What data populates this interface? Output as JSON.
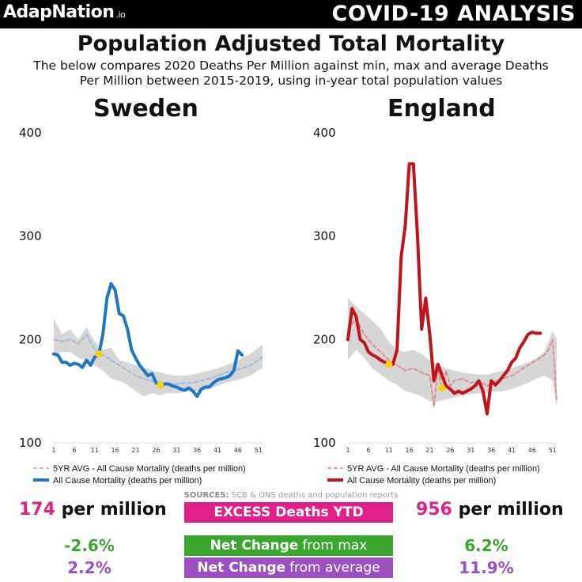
{
  "header": {
    "brand": "AdapNation",
    "brand_suffix": ".io",
    "topic": "COVID-19 ANALYSIS"
  },
  "title": "Population Adjusted Total Mortality",
  "subtitle": "The below compares 2020 Deaths Per Million against min, max and average Deaths Per Million between 2015-2019, using in-year total population values",
  "charts": {
    "left_title": "Sweden",
    "right_title": "England"
  },
  "chart_data": [
    {
      "type": "line",
      "title": "Sweden",
      "x_ticks": [
        1,
        6,
        11,
        16,
        21,
        26,
        31,
        36,
        41,
        46,
        51
      ],
      "y_ticks": [
        100,
        200,
        300,
        400
      ],
      "ylim": [
        100,
        400
      ],
      "xlim": [
        1,
        52
      ],
      "legend": [
        "5YR AVG - All Cause Mortality (deaths per million)",
        "All Cause Mortality (deaths per million)"
      ],
      "series": [
        {
          "name": "All Cause Mortality (deaths per million)",
          "color": "#1f77c4",
          "x": [
            1,
            2,
            3,
            4,
            5,
            6,
            7,
            8,
            9,
            10,
            11,
            12,
            13,
            14,
            15,
            16,
            17,
            18,
            19,
            20,
            21,
            22,
            23,
            24,
            25,
            26,
            27,
            28,
            29,
            30,
            31,
            32,
            33,
            34,
            35,
            36,
            37,
            38,
            39,
            40,
            41,
            42,
            43,
            44,
            45,
            46,
            47
          ],
          "values": [
            186,
            185,
            178,
            178,
            175,
            177,
            176,
            173,
            180,
            175,
            183,
            185,
            205,
            240,
            254,
            248,
            225,
            223,
            210,
            190,
            182,
            175,
            170,
            165,
            167,
            158,
            155,
            157,
            157,
            155,
            154,
            152,
            151,
            153,
            150,
            145,
            152,
            154,
            154,
            158,
            161,
            162,
            163,
            165,
            170,
            189,
            185
          ]
        },
        {
          "name": "5YR AVG - All Cause Mortality (deaths per million)",
          "color": "#8fb6dd",
          "dashed": true,
          "x": [
            1,
            3,
            5,
            7,
            9,
            11,
            13,
            15,
            17,
            19,
            21,
            23,
            25,
            27,
            29,
            31,
            33,
            35,
            37,
            39,
            41,
            43,
            45,
            47,
            49,
            51,
            52
          ],
          "values": [
            200,
            198,
            200,
            196,
            205,
            190,
            185,
            180,
            175,
            170,
            165,
            162,
            160,
            158,
            157,
            157,
            158,
            158,
            160,
            162,
            165,
            168,
            170,
            172,
            175,
            180,
            183
          ]
        }
      ],
      "band": {
        "name": "5YR min/max range",
        "x": [
          1,
          3,
          5,
          7,
          9,
          11,
          13,
          15,
          17,
          19,
          21,
          23,
          25,
          27,
          29,
          31,
          33,
          35,
          37,
          39,
          41,
          43,
          45,
          47,
          49,
          51,
          52
        ],
        "max": [
          220,
          205,
          210,
          200,
          212,
          198,
          190,
          192,
          180,
          178,
          175,
          173,
          170,
          168,
          166,
          165,
          165,
          166,
          168,
          170,
          172,
          175,
          178,
          182,
          186,
          192,
          195
        ],
        "min": [
          185,
          188,
          188,
          182,
          180,
          175,
          170,
          162,
          160,
          156,
          150,
          145,
          148,
          146,
          148,
          148,
          149,
          150,
          150,
          152,
          155,
          158,
          160,
          162,
          165,
          170,
          172
        ]
      },
      "markers": [
        {
          "x": 12,
          "y": 186
        },
        {
          "x": 27,
          "y": 156
        }
      ]
    },
    {
      "type": "line",
      "title": "England",
      "x_ticks": [
        1,
        6,
        11,
        16,
        21,
        26,
        31,
        36,
        41,
        46,
        51
      ],
      "y_ticks": [
        100,
        200,
        300,
        400
      ],
      "ylim": [
        100,
        400
      ],
      "xlim": [
        1,
        52
      ],
      "legend": [
        "5YR AVG - All Cause Mortality (deaths per million)",
        "All Cause Mortality (deaths per million)"
      ],
      "series": [
        {
          "name": "All Cause Mortality (deaths per million)",
          "color": "#c0131c",
          "x": [
            1,
            2,
            3,
            4,
            5,
            6,
            7,
            8,
            9,
            10,
            11,
            12,
            13,
            14,
            15,
            16,
            17,
            18,
            19,
            20,
            21,
            22,
            23,
            24,
            25,
            26,
            27,
            28,
            29,
            30,
            31,
            32,
            33,
            34,
            35,
            36,
            37,
            38,
            39,
            40,
            41,
            42,
            43,
            44,
            45,
            46,
            47,
            48
          ],
          "values": [
            200,
            230,
            222,
            200,
            197,
            188,
            185,
            183,
            180,
            178,
            176,
            176,
            190,
            280,
            310,
            370,
            370,
            300,
            210,
            240,
            205,
            160,
            176,
            165,
            155,
            152,
            148,
            150,
            148,
            150,
            152,
            155,
            160,
            150,
            128,
            160,
            156,
            160,
            165,
            170,
            178,
            182,
            192,
            198,
            205,
            207,
            206,
            206
          ]
        },
        {
          "name": "5YR AVG - All Cause Mortality (deaths per million)",
          "color": "#e08080",
          "dashed": true,
          "x": [
            1,
            3,
            5,
            7,
            9,
            11,
            13,
            15,
            17,
            19,
            21,
            22,
            23,
            24,
            25,
            26,
            27,
            29,
            31,
            33,
            35,
            37,
            39,
            41,
            43,
            45,
            47,
            49,
            50,
            51,
            52
          ],
          "values": [
            210,
            220,
            205,
            195,
            188,
            180,
            175,
            170,
            172,
            168,
            165,
            135,
            172,
            150,
            170,
            155,
            160,
            162,
            158,
            160,
            155,
            160,
            162,
            165,
            170,
            175,
            180,
            185,
            190,
            200,
            140
          ]
        }
      ],
      "band": {
        "name": "5YR min/max range",
        "x": [
          1,
          3,
          5,
          7,
          9,
          11,
          13,
          15,
          17,
          19,
          21,
          23,
          25,
          27,
          29,
          31,
          33,
          35,
          37,
          39,
          41,
          43,
          45,
          47,
          49,
          51,
          52
        ],
        "max": [
          240,
          232,
          225,
          218,
          210,
          198,
          190,
          188,
          190,
          186,
          180,
          176,
          172,
          170,
          168,
          167,
          166,
          166,
          168,
          170,
          172,
          175,
          178,
          182,
          188,
          208,
          200
        ],
        "min": [
          180,
          190,
          182,
          172,
          166,
          160,
          156,
          150,
          148,
          145,
          140,
          140,
          142,
          144,
          146,
          147,
          148,
          148,
          150,
          150,
          152,
          155,
          158,
          162,
          165,
          160,
          135
        ]
      },
      "markers": [
        {
          "x": 11,
          "y": 176
        },
        {
          "x": 24,
          "y": 153
        }
      ]
    }
  ],
  "footer": {
    "source_label": "SOURCES:",
    "source_text": "SCB & ONS deaths and population reports",
    "excess_label": "EXCESS Deaths YTD",
    "per_million": "per million",
    "left_excess": "174",
    "right_excess": "956",
    "max_label_bold": "Net Change",
    "max_label_rest": "from max",
    "avg_label_bold": "Net Change",
    "avg_label_rest": "from average",
    "left_from_max": "-2.6%",
    "left_from_avg": "2.2%",
    "right_from_max": "6.2%",
    "right_from_avg": "11.9%"
  }
}
